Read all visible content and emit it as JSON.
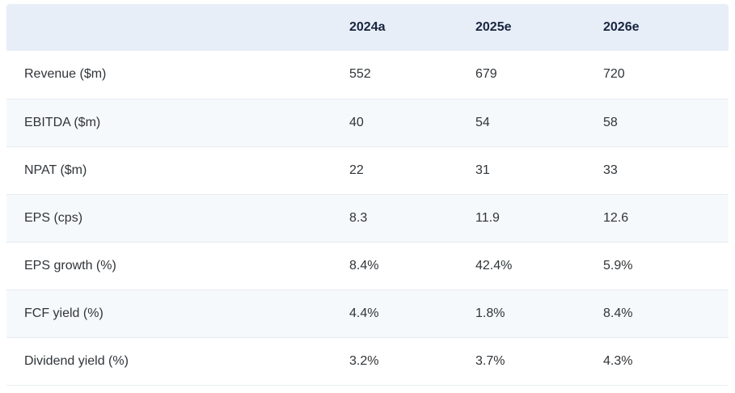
{
  "table": {
    "columns": [
      "",
      "2024a",
      "2025e",
      "2026e"
    ],
    "rows": [
      {
        "label": "Revenue ($m)",
        "values": [
          "552",
          "679",
          "720"
        ]
      },
      {
        "label": "EBITDA ($m)",
        "values": [
          "40",
          "54",
          "58"
        ]
      },
      {
        "label": "NPAT ($m)",
        "values": [
          "22",
          "31",
          "33"
        ]
      },
      {
        "label": "EPS (cps)",
        "values": [
          "8.3",
          "11.9",
          "12.6"
        ]
      },
      {
        "label": "EPS growth (%)",
        "values": [
          "8.4%",
          "42.4%",
          "5.9%"
        ]
      },
      {
        "label": "FCF yield (%)",
        "values": [
          "4.4%",
          "1.8%",
          "8.4%"
        ]
      },
      {
        "label": "Dividend yield (%)",
        "values": [
          "3.2%",
          "3.7%",
          "4.3%"
        ]
      }
    ],
    "colors": {
      "header_bg": "#e7eef8",
      "header_text": "#18253f",
      "row_bg": "#ffffff",
      "row_alt_bg": "#f6f9fc",
      "border": "#e7ecf1",
      "body_text": "#303438"
    }
  }
}
